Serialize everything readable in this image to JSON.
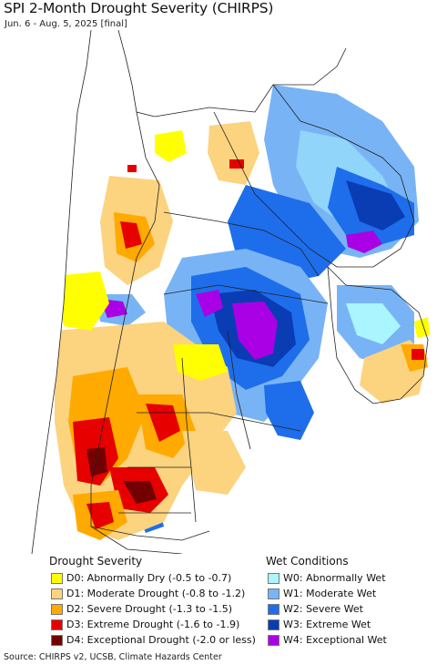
{
  "title": "SPI 2-Month Drought Severity (CHIRPS)",
  "subtitle": "Jun. 6 - Aug. 5, 2025 [final]",
  "colors": {
    "ocean": "#ffffff",
    "land_normal": "#ffffff",
    "border": "#222222",
    "D0": "#ffff00",
    "D1": "#fcd37f",
    "D2": "#ffaa00",
    "D3": "#e60000",
    "D4": "#730000",
    "W0": "#aaf5ff",
    "W1": "#78b4f5",
    "W2": "#1e6eeb",
    "W3": "#0a3cb4",
    "W4": "#aa00e6"
  },
  "legend_drought": {
    "title": "Drought Severity",
    "items": [
      {
        "code": "D0",
        "label": "D0: Abnormally Dry (-0.5 to -0.7)",
        "color": "#ffff00"
      },
      {
        "code": "D1",
        "label": "D1: Moderate Drought (-0.8 to -1.2)",
        "color": "#fcd37f"
      },
      {
        "code": "D2",
        "label": "D2: Severe Drought (-1.3 to -1.5)",
        "color": "#ffaa00"
      },
      {
        "code": "D3",
        "label": "D3: Extreme Drought (-1.6 to -1.9)",
        "color": "#e60000"
      },
      {
        "code": "D4",
        "label": "D4: Exceptional Drought (-2.0 or less)",
        "color": "#730000"
      }
    ]
  },
  "legend_wet": {
    "title": "Wet Conditions",
    "items": [
      {
        "code": "W0",
        "label": "W0: Abnormally Wet",
        "color": "#aaf5ff"
      },
      {
        "code": "W1",
        "label": "W1: Moderate Wet",
        "color": "#78b4f5"
      },
      {
        "code": "W2",
        "label": "W2: Severe Wet",
        "color": "#1e6eeb"
      },
      {
        "code": "W3",
        "label": "W3: Extreme Wet",
        "color": "#0a3cb4"
      },
      {
        "code": "W4",
        "label": "W4: Exceptional Wet",
        "color": "#aa00e6"
      }
    ]
  },
  "source": "Source: CHIRPS v2, UCSB, Climate Hazards Center"
}
